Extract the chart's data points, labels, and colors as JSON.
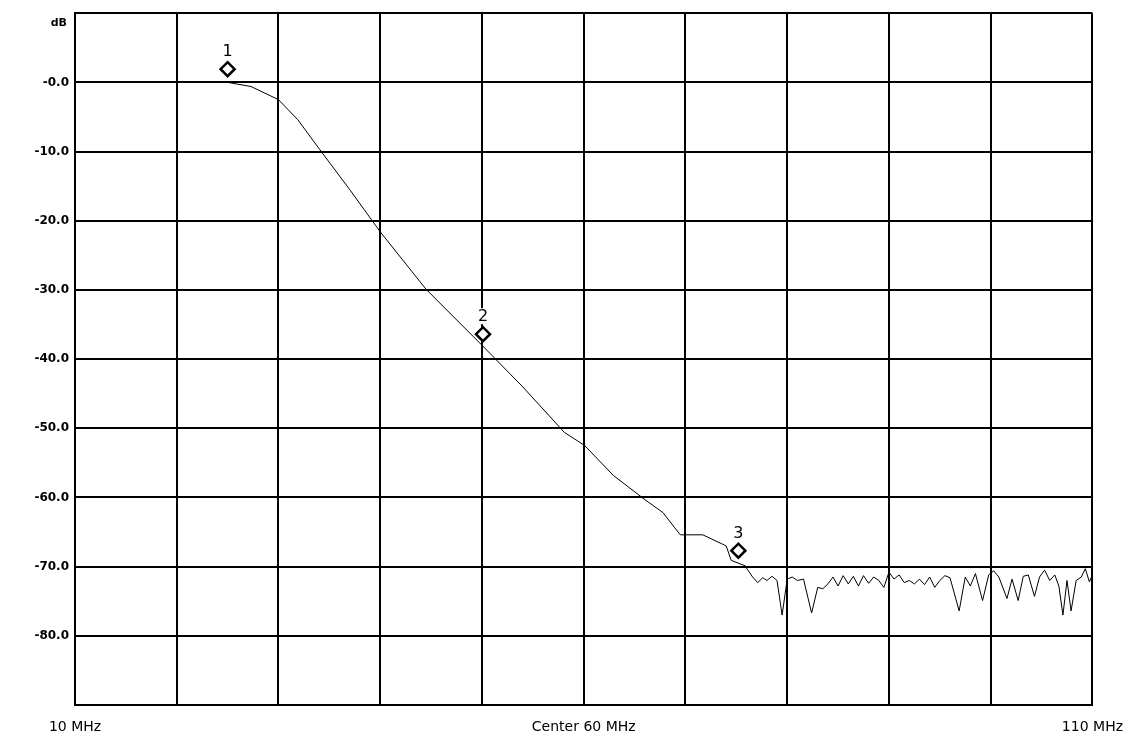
{
  "chart_data": {
    "type": "line",
    "ylabel": "dB",
    "xlim": [
      10,
      110
    ],
    "ylim": [
      -90,
      10
    ],
    "xticks": [
      {
        "value": 10,
        "label": "10 MHz"
      },
      {
        "value": 20,
        "label": null
      },
      {
        "value": 30,
        "label": null
      },
      {
        "value": 40,
        "label": null
      },
      {
        "value": 50,
        "label": null
      },
      {
        "value": 60,
        "label": "Center 60 MHz"
      },
      {
        "value": 70,
        "label": null
      },
      {
        "value": 80,
        "label": null
      },
      {
        "value": 90,
        "label": null
      },
      {
        "value": 100,
        "label": null
      },
      {
        "value": 110,
        "label": "110 MHz"
      }
    ],
    "yticks": [
      {
        "value": 10,
        "label": null
      },
      {
        "value": 0,
        "label": "-0.0"
      },
      {
        "value": -10,
        "label": "-10.0"
      },
      {
        "value": -20,
        "label": "-20.0"
      },
      {
        "value": -30,
        "label": "-30.0"
      },
      {
        "value": -40,
        "label": "-40.0"
      },
      {
        "value": -50,
        "label": "-50.0"
      },
      {
        "value": -60,
        "label": "-60.0"
      },
      {
        "value": -70,
        "label": "-70.0"
      },
      {
        "value": -80,
        "label": "-80.0"
      },
      {
        "value": -90,
        "label": null
      }
    ],
    "grid": true,
    "legend": false,
    "line_style": "solid",
    "series": [
      {
        "color": "#000000",
        "marker": "none",
        "x": [
          10,
          15,
          20,
          25,
          27.3,
          30,
          31.9,
          34,
          37,
          40,
          44.5,
          50,
          54,
          58.1,
          60.1,
          62.9,
          66,
          67.8,
          68.9,
          69.5,
          71.7,
          74,
          74.5,
          75.9,
          76.0,
          76.6,
          77.1,
          77.6,
          78.0,
          78.5,
          79.0,
          79.5,
          80.0,
          80.5,
          81.0,
          81.6,
          82.4,
          83.0,
          83.5,
          84.0,
          84.5,
          85.0,
          85.5,
          86.0,
          86.5,
          87.0,
          87.5,
          88.0,
          88.5,
          89.0,
          89.5,
          90.0,
          90.5,
          91.0,
          91.5,
          92.0,
          92.5,
          93.0,
          93.5,
          94.0,
          94.5,
          95.0,
          95.5,
          96.0,
          96.9,
          97.5,
          98.0,
          98.5,
          99.2,
          99.8,
          100.3,
          100.8,
          101.6,
          102.1,
          102.7,
          103.2,
          103.7,
          104.3,
          104.8,
          105.3,
          105.8,
          106.3,
          106.7,
          107.1,
          107.5,
          107.9,
          108.4,
          108.9,
          109.3,
          109.7,
          110.0
        ],
        "values": [
          0,
          0,
          0,
          0,
          -0.6,
          -2.5,
          -5.4,
          -9.6,
          -15.5,
          -21.6,
          -29.9,
          -38,
          -44,
          -50.6,
          -52.5,
          -56.8,
          -60.3,
          -62.2,
          -64.3,
          -65.4,
          -65.4,
          -67,
          -69.1,
          -69.9,
          -70.2,
          -71.5,
          -72.3,
          -71.6,
          -72.0,
          -71.4,
          -72.0,
          -77.0,
          -71.8,
          -71.5,
          -72.0,
          -71.8,
          -76.7,
          -73.0,
          -73.2,
          -72.5,
          -71.5,
          -72.8,
          -71.3,
          -72.5,
          -71.4,
          -72.8,
          -71.3,
          -72.4,
          -71.5,
          -72.0,
          -73.0,
          -70.8,
          -71.8,
          -71.2,
          -72.3,
          -72.0,
          -72.5,
          -71.8,
          -72.6,
          -71.5,
          -73.0,
          -72.0,
          -71.3,
          -71.6,
          -76.4,
          -71.5,
          -72.8,
          -71.0,
          -74.9,
          -71.2,
          -70.6,
          -71.5,
          -74.6,
          -71.8,
          -74.9,
          -71.4,
          -71.2,
          -74.3,
          -71.5,
          -70.5,
          -72.0,
          -71.2,
          -72.8,
          -77.0,
          -72.0,
          -76.4,
          -72.0,
          -71.5,
          -70.3,
          -72.2,
          -71.2
        ]
      },
      {
        "type": "scatter",
        "color": "#000000",
        "marker": "diamond",
        "x": [
          25,
          50.1,
          75.2
        ],
        "values": [
          1.9,
          -36.4,
          -67.7
        ]
      }
    ],
    "annotations": [
      {
        "text": "1",
        "x": 25,
        "y": 1.9
      },
      {
        "text": "2",
        "x": 50.1,
        "y": -36.4
      },
      {
        "text": "3",
        "x": 75.2,
        "y": -67.7
      }
    ]
  }
}
